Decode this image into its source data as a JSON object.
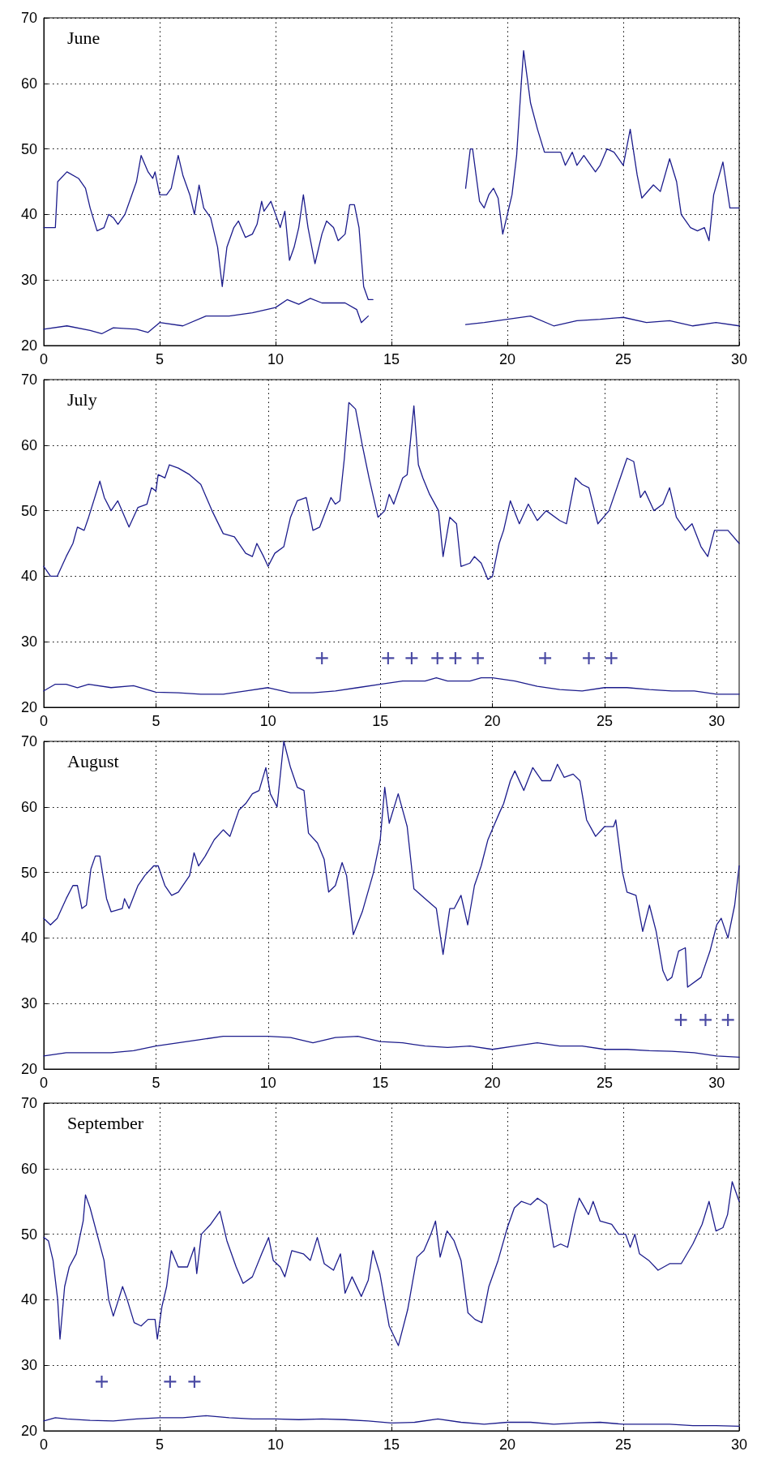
{
  "chart_data": [
    {
      "type": "line",
      "title": "June",
      "xlim": [
        0,
        30
      ],
      "xticks": [
        0,
        5,
        10,
        15,
        20,
        25,
        30
      ],
      "ylim": [
        20,
        70
      ],
      "yticks": [
        20,
        30,
        40,
        50,
        60,
        70
      ],
      "grid": true,
      "marker": "none",
      "line_style": "solid",
      "series": [
        {
          "color": "#1c1c8c",
          "x": [
            0,
            0.5,
            0.6,
            1,
            1.5,
            1.8,
            2,
            2.3,
            2.6,
            2.8,
            3,
            3.2,
            3.5,
            3.8,
            4,
            4.2,
            4.5,
            4.7,
            4.8,
            5,
            5.3,
            5.5,
            5.8,
            6,
            6.3,
            6.5,
            6.7,
            6.9,
            7.2,
            7.5,
            7.7,
            7.9,
            8.2,
            8.4,
            8.7,
            9,
            9.2,
            9.4,
            9.5,
            9.8,
            10,
            10.2,
            10.4,
            10.6,
            10.8,
            11,
            11.2,
            11.4,
            11.7,
            12,
            12.2,
            12.5,
            12.7,
            13,
            13.2,
            13.4,
            13.6,
            13.8,
            14,
            14.2,
            16,
            18.2,
            18.4,
            18.5,
            18.8,
            19,
            19.2,
            19.4,
            19.6,
            19.8,
            20,
            20.2,
            20.4,
            20.6,
            20.7,
            21,
            21.3,
            21.6,
            22,
            22.3,
            22.5,
            22.8,
            23,
            23.3,
            23.5,
            23.8,
            24,
            24.3,
            24.6,
            25,
            25.3,
            25.6,
            25.8,
            26.3,
            26.6,
            27,
            27.3,
            27.5,
            27.9,
            28.2,
            28.5,
            28.7,
            28.9,
            29.3,
            29.6,
            30
          ],
          "values": [
            38,
            38,
            45,
            46.5,
            45.5,
            44,
            41,
            37.5,
            38,
            40,
            39.5,
            38.5,
            40,
            43,
            45,
            49,
            46.5,
            45.5,
            46.5,
            43,
            43,
            44,
            49,
            46,
            43,
            40,
            44.5,
            41,
            39.5,
            35,
            29,
            35,
            38,
            39,
            36.5,
            37,
            38.5,
            42,
            40.5,
            42,
            40,
            38,
            40.5,
            33,
            35,
            38,
            43,
            38,
            32.5,
            37,
            39,
            38,
            36,
            37,
            41.5,
            41.5,
            38,
            29,
            27,
            27,
            null,
            44,
            50,
            50,
            42,
            41,
            43,
            44,
            42.5,
            37,
            40,
            43,
            49,
            60,
            65,
            57,
            53,
            49.5,
            49.5,
            49.5,
            47.5,
            49.5,
            47.5,
            49,
            48,
            46.5,
            47.5,
            50,
            49.5,
            47.5,
            53,
            46,
            42.5,
            44.5,
            43.5,
            48.5,
            45,
            40,
            38,
            37.5,
            38,
            36,
            43,
            48,
            41,
            41
          ]
        },
        {
          "color": "#1c1c8c",
          "x": [
            0,
            1,
            2,
            2.5,
            3,
            4,
            4.5,
            5,
            6,
            7,
            8,
            9,
            10,
            10.5,
            11,
            11.5,
            12,
            13,
            13.5,
            13.7,
            14,
            16,
            18.2,
            19,
            20,
            21,
            22,
            23,
            24,
            25,
            26,
            27,
            28,
            29,
            30
          ],
          "values": [
            22.5,
            23,
            22.3,
            21.8,
            22.7,
            22.5,
            22,
            23.5,
            23,
            24.5,
            24.5,
            25,
            25.8,
            27,
            26.3,
            27.2,
            26.5,
            26.5,
            25.5,
            23.5,
            24.5,
            null,
            23.2,
            23.5,
            24,
            24.5,
            23,
            23.8,
            24,
            24.3,
            23.5,
            23.8,
            23,
            23.5,
            23
          ]
        }
      ]
    },
    {
      "type": "line",
      "title": "July",
      "xlim": [
        0,
        31
      ],
      "xticks": [
        0,
        5,
        10,
        15,
        20,
        25,
        30
      ],
      "ylim": [
        20,
        70
      ],
      "yticks": [
        20,
        30,
        40,
        50,
        60,
        70
      ],
      "grid": true,
      "marker": "none",
      "line_style": "solid",
      "series": [
        {
          "color": "#1c1c8c",
          "x": [
            0,
            0.3,
            0.6,
            1,
            1.3,
            1.5,
            1.8,
            2,
            2.5,
            2.7,
            3,
            3.3,
            3.8,
            4.2,
            4.6,
            4.8,
            5,
            5.1,
            5.4,
            5.6,
            6,
            6.5,
            7,
            7.5,
            8,
            8.5,
            9,
            9.3,
            9.5,
            9.8,
            10,
            10.3,
            10.7,
            11,
            11.3,
            11.7,
            12,
            12.3,
            12.8,
            13,
            13.2,
            13.4,
            13.6,
            13.9,
            14.2,
            14.5,
            14.9,
            15.2,
            15.4,
            15.6,
            16,
            16.2,
            16.5,
            16.7,
            16.9,
            17.2,
            17.6,
            17.8,
            18.1,
            18.4,
            18.6,
            19,
            19.2,
            19.5,
            19.8,
            20,
            20.3,
            20.5,
            20.8,
            21.2,
            21.6,
            22,
            22.4,
            23,
            23.3,
            23.7,
            24,
            24.3,
            24.7,
            25.2,
            25.7,
            26,
            26.3,
            26.6,
            26.8,
            27.2,
            27.6,
            27.9,
            28.2,
            28.6,
            28.9,
            29.3,
            29.6,
            29.9,
            30.5,
            31
          ],
          "values": [
            41.5,
            40,
            40,
            43,
            45,
            47.5,
            47,
            49,
            54.5,
            52,
            50,
            51.5,
            47.5,
            50.5,
            51,
            53.5,
            53,
            55.5,
            55,
            57,
            56.5,
            55.5,
            54,
            50,
            46.5,
            46,
            43.5,
            43,
            45,
            43,
            41.5,
            43.5,
            44.5,
            49,
            51.5,
            52,
            47,
            47.5,
            52,
            51,
            51.5,
            58,
            66.5,
            65.5,
            60,
            55,
            49,
            50,
            52.5,
            51,
            55,
            55.5,
            66,
            57,
            55,
            52.5,
            50,
            43,
            49,
            48,
            41.5,
            42,
            43,
            42,
            39.5,
            40,
            45,
            47,
            51.5,
            48,
            51,
            48.5,
            50,
            48.5,
            48,
            55,
            54,
            53.5,
            48,
            50,
            55,
            58,
            57.5,
            52,
            53,
            50,
            51,
            53.5,
            49,
            47,
            48,
            44.5,
            43,
            47,
            47,
            45
          ]
        },
        {
          "color": "#1c1c8c",
          "x": [
            0,
            0.5,
            1,
            1.5,
            2,
            3,
            4,
            5,
            6,
            7,
            8,
            9,
            10,
            11,
            12,
            13,
            14,
            15,
            16,
            17,
            17.5,
            18,
            19,
            19.5,
            20,
            21,
            22,
            23,
            24,
            25,
            26,
            27,
            28,
            29,
            30,
            31
          ],
          "values": [
            22.5,
            23.5,
            23.5,
            23,
            23.5,
            23,
            23.3,
            22.3,
            22.2,
            22,
            22,
            22.5,
            23,
            22.2,
            22.2,
            22.5,
            23,
            23.5,
            24,
            24,
            24.5,
            24,
            24,
            24.5,
            24.5,
            24,
            23.2,
            22.7,
            22.5,
            23,
            23,
            22.7,
            22.5,
            22.5,
            22,
            22
          ]
        },
        {
          "type": "scatter",
          "marker": "cross",
          "color": "#1c1c8c",
          "x": [
            12.4,
            15.35,
            16.4,
            17.55,
            18.35,
            19.35,
            22.35,
            24.3,
            25.3
          ],
          "values": [
            27.5,
            27.5,
            27.5,
            27.5,
            27.5,
            27.5,
            27.5,
            27.5,
            27.5
          ]
        }
      ]
    },
    {
      "type": "line",
      "title": "August",
      "xlim": [
        0,
        31
      ],
      "xticks": [
        0,
        5,
        10,
        15,
        20,
        25,
        30
      ],
      "ylim": [
        20,
        70
      ],
      "yticks": [
        20,
        30,
        40,
        50,
        60,
        70
      ],
      "grid": true,
      "marker": "none",
      "line_style": "solid",
      "series": [
        {
          "color": "#1c1c8c",
          "x": [
            0,
            0.3,
            0.6,
            1,
            1.3,
            1.5,
            1.7,
            1.9,
            2.1,
            2.3,
            2.5,
            2.8,
            3,
            3.5,
            3.6,
            3.8,
            4.2,
            4.5,
            4.9,
            5.1,
            5.4,
            5.7,
            6,
            6.5,
            6.7,
            6.9,
            7.2,
            7.6,
            8,
            8.3,
            8.7,
            9,
            9.3,
            9.6,
            9.9,
            10.1,
            10.4,
            10.7,
            11,
            11.3,
            11.6,
            11.8,
            12.2,
            12.5,
            12.7,
            13,
            13.3,
            13.5,
            13.8,
            14.2,
            14.7,
            15,
            15.2,
            15.4,
            15.8,
            16.2,
            16.5,
            17,
            17.5,
            17.8,
            18.1,
            18.3,
            18.6,
            18.9,
            19.2,
            19.5,
            19.8,
            20.3,
            20.5,
            20.8,
            21,
            21.4,
            21.8,
            22.2,
            22.6,
            22.9,
            23.2,
            23.6,
            23.9,
            24.2,
            24.6,
            25,
            25.4,
            25.5,
            25.8,
            26,
            26.4,
            26.7,
            27,
            27.3,
            27.6,
            27.8,
            28,
            28.3,
            28.6,
            28.7,
            29.3,
            29.7,
            30,
            30.2,
            30.5,
            30.8,
            31
          ],
          "values": [
            43,
            42,
            43,
            46,
            48,
            48,
            44.5,
            45,
            50.5,
            52.5,
            52.5,
            46,
            44,
            44.5,
            46,
            44.5,
            48,
            49.5,
            51,
            51,
            48,
            46.5,
            47,
            49.5,
            53,
            51,
            52.5,
            55,
            56.5,
            55.5,
            59.5,
            60.5,
            62,
            62.5,
            66,
            62,
            60,
            70,
            66,
            63,
            62.5,
            56,
            54.5,
            52,
            47,
            48,
            51.5,
            49.5,
            40.5,
            44,
            50,
            55,
            63,
            57.5,
            62,
            57,
            47.5,
            46,
            44.5,
            37.5,
            44.5,
            44.5,
            46.5,
            42,
            48,
            51,
            55,
            59,
            60.5,
            64,
            65.5,
            62.5,
            66,
            64,
            64,
            66.5,
            64.5,
            65,
            64,
            58,
            55.5,
            57,
            57,
            58,
            50,
            47,
            46.5,
            41,
            45,
            41,
            35,
            33.5,
            34,
            38,
            38.5,
            32.5,
            34,
            38,
            42,
            43,
            40,
            45,
            51
          ]
        },
        {
          "color": "#1c1c8c",
          "x": [
            0,
            1,
            2,
            3,
            4,
            5,
            6,
            7,
            8,
            9,
            10,
            11,
            12,
            13,
            14,
            15,
            16,
            17,
            18,
            19,
            20,
            21,
            22,
            23,
            24,
            25,
            26,
            27,
            28,
            29,
            30,
            31
          ],
          "values": [
            22,
            22.5,
            22.5,
            22.5,
            22.8,
            23.5,
            24,
            24.5,
            25,
            25,
            25,
            24.8,
            24,
            24.8,
            25,
            24.2,
            24,
            23.5,
            23.3,
            23.5,
            23,
            23.5,
            24,
            23.5,
            23.5,
            23,
            23,
            22.8,
            22.7,
            22.5,
            22,
            21.8
          ]
        },
        {
          "type": "scatter",
          "marker": "cross",
          "color": "#1c1c8c",
          "x": [
            28.4,
            29.5,
            30.5
          ],
          "values": [
            27.5,
            27.5,
            27.5
          ]
        }
      ]
    },
    {
      "type": "line",
      "title": "September",
      "xlim": [
        0,
        30
      ],
      "xticks": [
        0,
        5,
        10,
        15,
        20,
        25,
        30
      ],
      "ylim": [
        20,
        70
      ],
      "yticks": [
        20,
        30,
        40,
        50,
        60,
        70
      ],
      "grid": true,
      "marker": "none",
      "line_style": "solid",
      "series": [
        {
          "color": "#1c1c8c",
          "x": [
            0,
            0.2,
            0.4,
            0.6,
            0.7,
            0.9,
            1.1,
            1.4,
            1.7,
            1.8,
            2,
            2.3,
            2.6,
            2.8,
            3,
            3.4,
            3.6,
            3.9,
            4.2,
            4.5,
            4.8,
            4.9,
            5.1,
            5.3,
            5.5,
            5.8,
            6.2,
            6.5,
            6.6,
            6.8,
            7.2,
            7.6,
            7.9,
            8.3,
            8.6,
            9,
            9.4,
            9.7,
            9.9,
            10.2,
            10.4,
            10.7,
            11.2,
            11.5,
            11.8,
            12.1,
            12.5,
            12.8,
            13,
            13.3,
            13.7,
            14,
            14.2,
            14.5,
            14.9,
            15.3,
            15.7,
            16.1,
            16.4,
            16.7,
            16.9,
            17.1,
            17.4,
            17.7,
            18,
            18.3,
            18.6,
            18.9,
            19.2,
            19.6,
            20,
            20.3,
            20.6,
            21,
            21.3,
            21.7,
            22,
            22.3,
            22.6,
            22.9,
            23.1,
            23.5,
            23.7,
            24,
            24.5,
            24.8,
            25.1,
            25.3,
            25.5,
            25.7,
            26.1,
            26.5,
            27,
            27.5,
            28,
            28.4,
            28.7,
            29,
            29.3,
            29.5,
            29.7,
            30
          ],
          "values": [
            49.5,
            49,
            46,
            40,
            34,
            42,
            45,
            47,
            52,
            56,
            54,
            50,
            46,
            40,
            37.5,
            42,
            40,
            36.5,
            36,
            37,
            37,
            34,
            39,
            42,
            47.5,
            45,
            45,
            48,
            44,
            50,
            51.5,
            53.5,
            49,
            45,
            42.5,
            43.5,
            47,
            49.5,
            46,
            45,
            43.5,
            47.5,
            47,
            46,
            49.5,
            45.5,
            44.5,
            47,
            41,
            43.5,
            40.5,
            43,
            47.5,
            44,
            36,
            33,
            38.5,
            46.5,
            47.5,
            50,
            52,
            46.5,
            50.5,
            49,
            46,
            38,
            37,
            36.5,
            42,
            46,
            51,
            54,
            55,
            54.5,
            55.5,
            54.5,
            48,
            48.5,
            48,
            53,
            55.5,
            53,
            55,
            52,
            51.5,
            50,
            50,
            48,
            50,
            47,
            46,
            44.5,
            45.5,
            45.5,
            48.5,
            51.5,
            55,
            50.5,
            51,
            53,
            58,
            55
          ]
        },
        {
          "color": "#1c1c8c",
          "x": [
            0,
            0.5,
            1,
            2,
            3,
            4,
            5,
            6,
            7,
            8,
            9,
            10,
            11,
            12,
            13,
            14,
            15,
            16,
            17,
            18,
            19,
            20,
            21,
            22,
            23,
            24,
            25,
            26,
            27,
            28,
            29,
            30
          ],
          "values": [
            21.5,
            22,
            21.8,
            21.6,
            21.5,
            21.8,
            22,
            22,
            22.3,
            22,
            21.8,
            21.8,
            21.7,
            21.8,
            21.7,
            21.5,
            21.2,
            21.3,
            21.8,
            21.3,
            21,
            21.3,
            21.3,
            21,
            21.2,
            21.3,
            21,
            21,
            21,
            20.8,
            20.8,
            20.7
          ]
        },
        {
          "type": "scatter",
          "marker": "cross",
          "color": "#1c1c8c",
          "x": [
            2.5,
            5.45,
            6.5
          ],
          "values": [
            27.5,
            27.5,
            27.5
          ]
        }
      ]
    }
  ]
}
